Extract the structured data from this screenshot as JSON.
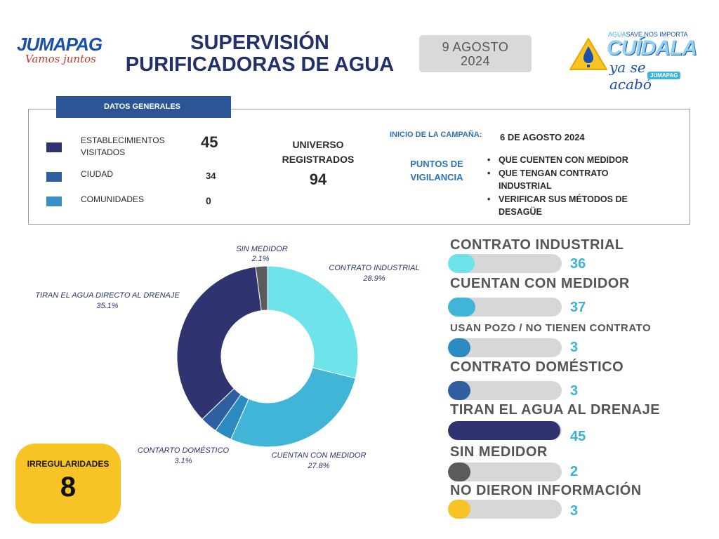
{
  "header": {
    "logo_left_brand": "JUMAPAG",
    "logo_left_tag": "Vamos juntos",
    "title_line1": "SUPERVISIÓN",
    "title_line2": "PURIFICADORAS DE AGUA",
    "date_line1": "9 AGOSTO",
    "date_line2": "2024",
    "logo_right_top_a": "AGUA",
    "logo_right_top_b": "SAVE NOS IMPORTA",
    "logo_right_main": "CUÍDALA",
    "logo_right_sub": "ya se acabó",
    "logo_right_badge": "JUMAPAG"
  },
  "general": {
    "tab_label": "DATOS GENERALES",
    "items": [
      {
        "label_line1": "ESTABLECIMIENTOS",
        "label_line2": "VISITADOS",
        "value": "45",
        "color": "#2f3470"
      },
      {
        "label_line1": "CIUDAD",
        "label_line2": "",
        "value": "34",
        "color": "#2e5fa0"
      },
      {
        "label_line1": "COMUNIDADES",
        "label_line2": "",
        "value": "0",
        "color": "#3a8fc4"
      }
    ],
    "universo_line1": "UNIVERSO",
    "universo_line2": "REGISTRADOS",
    "universo_value": "94",
    "campaign_label": "INICIO DE LA CAMPAÑA:",
    "campaign_value": "6 DE AGOSTO 2024",
    "puntos_line1": "PUNTOS DE",
    "puntos_line2": "VIGILANCIA",
    "puntos": [
      "QUE CUENTEN CON MEDIDOR",
      "QUE TENGAN CONTRATO INDUSTRIAL",
      "VERIFICAR SUS MÉTODOS DE DESAGÜE"
    ]
  },
  "irregularidades": {
    "label": "IRREGULARIDADES",
    "value": "8"
  },
  "chart_data": [
    {
      "type": "pie",
      "donut": true,
      "slices": [
        {
          "name": "CONTRATO INDUSTRIAL",
          "value": 28.9,
          "label": "28.9%",
          "color": "#6fe3ea"
        },
        {
          "name": "CUENTAN CON MEDIDOR",
          "value": 27.8,
          "label": "27.8%",
          "color": "#40b5d8"
        },
        {
          "name": "",
          "value": 3.1,
          "label": "",
          "color": "#2b8ac0"
        },
        {
          "name": "CONTARTO DOMÉSTICO",
          "value": 3.1,
          "label": "3.1%",
          "color": "#2e5fa0"
        },
        {
          "name": "TIRAN EL AGUA DIRECTO AL DRENAJE",
          "value": 35.1,
          "label": "35.1%",
          "color": "#2f3470"
        },
        {
          "name": "SIN MEDIDOR",
          "value": 2.1,
          "label": "2.1%",
          "color": "#5b5b5b"
        }
      ]
    },
    {
      "type": "bar",
      "orientation": "horizontal",
      "max": 45,
      "bars": [
        {
          "name": "CONTRATO INDUSTRIAL",
          "value": 36,
          "display": "36",
          "color": "#6fe3ea"
        },
        {
          "name": "CUENTAN CON MEDIDOR",
          "value": 37,
          "display": "37",
          "color": "#40b5d8"
        },
        {
          "name": "USAN POZO / NO TIENEN CONTRATO",
          "value": 3,
          "display": "3",
          "color": "#2b8ac0"
        },
        {
          "name": "CONTRATO DOMÉSTICO",
          "value": 3,
          "display": "3",
          "color": "#2e5fa0"
        },
        {
          "name": "TIRAN EL AGUA AL DRENAJE",
          "value": 45,
          "display": "45",
          "color": "#2f3470"
        },
        {
          "name": "SIN MEDIDOR",
          "value": 2,
          "display": "2",
          "color": "#5b5b5b"
        },
        {
          "name": "NO DIERON INFORMACIÓN",
          "value": 3,
          "display": "3",
          "color": "#f7c325"
        }
      ]
    }
  ]
}
